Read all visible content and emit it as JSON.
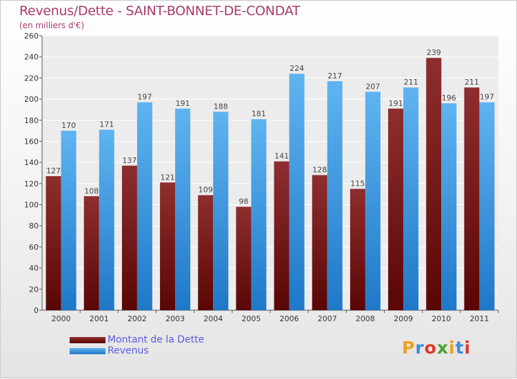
{
  "chart_data": {
    "type": "bar",
    "title": "Revenus/Dette - SAINT-BONNET-DE-CONDAT",
    "subtitle": "(en milliers d'€)",
    "categories": [
      "2000",
      "2001",
      "2002",
      "2003",
      "2004",
      "2005",
      "2006",
      "2007",
      "2008",
      "2009",
      "2010",
      "2011"
    ],
    "series": [
      {
        "name": "Montant de la Dette",
        "color": "#7a1a1e",
        "values": [
          127,
          108,
          137,
          121,
          109,
          98,
          141,
          128,
          115,
          191,
          239,
          211
        ]
      },
      {
        "name": "Revenus",
        "color": "#4ea6e8",
        "values": [
          170,
          171,
          197,
          191,
          188,
          181,
          224,
          217,
          207,
          211,
          196,
          197
        ]
      }
    ],
    "ylim": [
      0,
      260
    ],
    "yticks": [
      0,
      20,
      40,
      60,
      80,
      100,
      120,
      140,
      160,
      180,
      200,
      220,
      240,
      260
    ],
    "grid": true,
    "legend_position": "bottom-left"
  },
  "logo": {
    "text": "Proxiti",
    "letters": [
      "P",
      "r",
      "o",
      "x",
      "i",
      "t",
      "i"
    ],
    "colors": [
      "#f0a020",
      "#3a8fd8",
      "#e03a2a",
      "#4aa030",
      "#f0a020",
      "#3a8fd8",
      "#e03a2a"
    ]
  }
}
